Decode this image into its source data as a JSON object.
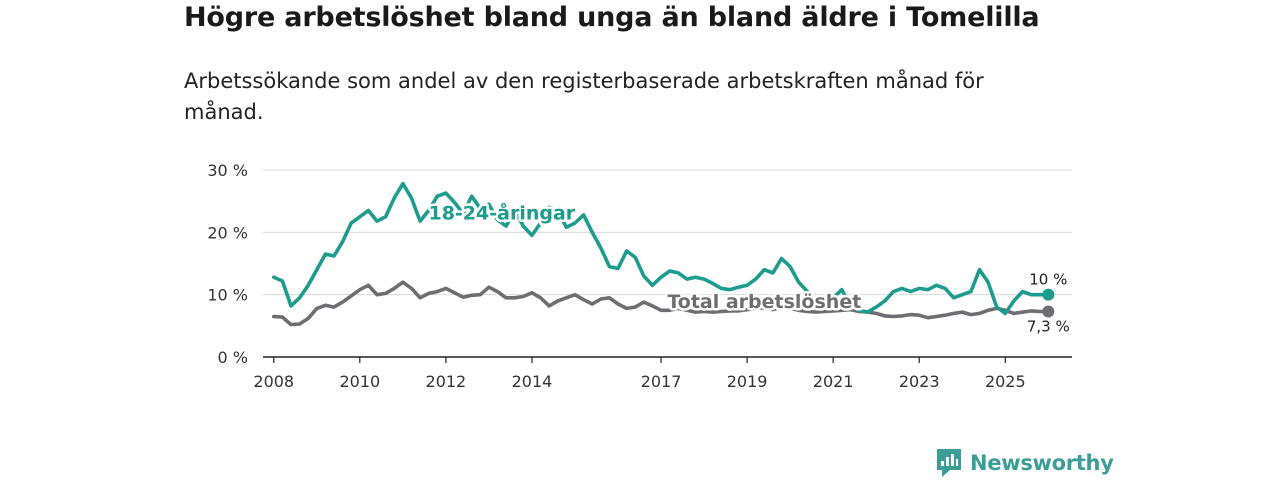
{
  "header": {
    "title": "Högre arbetslöshet bland unga än bland äldre i Tomelilla",
    "subtitle": "Arbetssökande som andel av den registerbaserade arbetskraften månad för månad."
  },
  "brand": {
    "name": "Newsworthy",
    "icon": "bar-chart-flag-icon",
    "color": "#3a9e96"
  },
  "chart_data": {
    "type": "line",
    "title": "Högre arbetslöshet bland unga än bland äldre i Tomelilla",
    "subtitle": "Arbetssökande som andel av den registerbaserade arbetskraften månad för månad.",
    "xlabel": "",
    "ylabel": "",
    "xlim": [
      2007.75,
      2026.55
    ],
    "ylim": [
      0,
      30
    ],
    "grid": true,
    "x_ticks": [
      {
        "value": 2008,
        "label": "2008"
      },
      {
        "value": 2010,
        "label": "2010"
      },
      {
        "value": 2012,
        "label": "2012"
      },
      {
        "value": 2014,
        "label": "2014"
      },
      {
        "value": 2017,
        "label": "2017"
      },
      {
        "value": 2019,
        "label": "2019"
      },
      {
        "value": 2021,
        "label": "2021"
      },
      {
        "value": 2023,
        "label": "2023"
      },
      {
        "value": 2025,
        "label": "2025"
      }
    ],
    "y_ticks": [
      {
        "value": 0,
        "label": "0 %"
      },
      {
        "value": 10,
        "label": "10 %"
      },
      {
        "value": 20,
        "label": "20 %"
      },
      {
        "value": 30,
        "label": "30 %"
      }
    ],
    "series": [
      {
        "name": "18-24-åringar",
        "color": "#1a9c8e",
        "end_label": "10 %",
        "x": [
          2008.0,
          2008.2,
          2008.4,
          2008.6,
          2008.8,
          2009.0,
          2009.2,
          2009.4,
          2009.6,
          2009.8,
          2010.0,
          2010.2,
          2010.4,
          2010.6,
          2010.8,
          2011.0,
          2011.2,
          2011.4,
          2011.6,
          2011.8,
          2012.0,
          2012.2,
          2012.4,
          2012.6,
          2012.8,
          2013.0,
          2013.2,
          2013.4,
          2013.6,
          2013.8,
          2014.0,
          2014.2,
          2014.4,
          2014.6,
          2014.8,
          2015.0,
          2015.2,
          2015.4,
          2015.6,
          2015.8,
          2016.0,
          2016.2,
          2016.4,
          2016.6,
          2016.8,
          2017.0,
          2017.2,
          2017.4,
          2017.6,
          2017.8,
          2018.0,
          2018.2,
          2018.4,
          2018.6,
          2018.8,
          2019.0,
          2019.2,
          2019.4,
          2019.6,
          2019.8,
          2020.0,
          2020.2,
          2020.4,
          2020.6,
          2020.8,
          2021.0,
          2021.2,
          2021.4,
          2021.6,
          2021.8,
          2022.0,
          2022.2,
          2022.4,
          2022.6,
          2022.8,
          2023.0,
          2023.2,
          2023.4,
          2023.6,
          2023.8,
          2024.0,
          2024.2,
          2024.4,
          2024.6,
          2024.8,
          2025.0,
          2025.2,
          2025.4,
          2025.6,
          2025.8,
          2026.0
        ],
        "values": [
          12.8,
          12.2,
          8.2,
          9.5,
          11.5,
          14.0,
          16.5,
          16.2,
          18.5,
          21.5,
          22.5,
          23.5,
          21.8,
          22.5,
          25.5,
          27.8,
          25.5,
          21.8,
          23.5,
          25.8,
          26.3,
          24.8,
          23.0,
          25.8,
          23.8,
          24.5,
          22.0,
          21.0,
          23.5,
          21.0,
          19.5,
          21.5,
          24.0,
          23.5,
          20.8,
          21.5,
          22.8,
          20.0,
          17.5,
          14.5,
          14.2,
          17.0,
          16.0,
          13.0,
          11.5,
          12.8,
          13.8,
          13.5,
          12.5,
          12.8,
          12.5,
          11.8,
          11.0,
          10.8,
          11.2,
          11.5,
          12.5,
          14.0,
          13.5,
          15.8,
          14.5,
          12.0,
          10.5,
          8.5,
          8.0,
          9.5,
          10.8,
          8.2,
          7.5,
          7.2,
          8.0,
          9.0,
          10.5,
          11.0,
          10.5,
          11.0,
          10.8,
          11.5,
          11.0,
          9.5,
          10.0,
          10.5,
          14.0,
          12.0,
          8.0,
          7.0,
          9.0,
          10.5,
          10.0,
          10.0,
          10.0
        ]
      },
      {
        "name": "Total arbetslöshet",
        "color": "#6e6d72",
        "end_label": "7,3 %",
        "x": [
          2008.0,
          2008.2,
          2008.4,
          2008.6,
          2008.8,
          2009.0,
          2009.2,
          2009.4,
          2009.6,
          2009.8,
          2010.0,
          2010.2,
          2010.4,
          2010.6,
          2010.8,
          2011.0,
          2011.2,
          2011.4,
          2011.6,
          2011.8,
          2012.0,
          2012.2,
          2012.4,
          2012.6,
          2012.8,
          2013.0,
          2013.2,
          2013.4,
          2013.6,
          2013.8,
          2014.0,
          2014.2,
          2014.4,
          2014.6,
          2014.8,
          2015.0,
          2015.2,
          2015.4,
          2015.6,
          2015.8,
          2016.0,
          2016.2,
          2016.4,
          2016.6,
          2016.8,
          2017.0,
          2017.2,
          2017.4,
          2017.6,
          2017.8,
          2018.0,
          2018.2,
          2018.4,
          2018.6,
          2018.8,
          2019.0,
          2019.2,
          2019.4,
          2019.6,
          2019.8,
          2020.0,
          2020.2,
          2020.4,
          2020.6,
          2020.8,
          2021.0,
          2021.2,
          2021.4,
          2021.6,
          2021.8,
          2022.0,
          2022.2,
          2022.4,
          2022.6,
          2022.8,
          2023.0,
          2023.2,
          2023.4,
          2023.6,
          2023.8,
          2024.0,
          2024.2,
          2024.4,
          2024.6,
          2024.8,
          2025.0,
          2025.2,
          2025.4,
          2025.6,
          2025.8,
          2026.0
        ],
        "values": [
          6.5,
          6.4,
          5.2,
          5.3,
          6.2,
          7.8,
          8.3,
          8.0,
          8.8,
          9.8,
          10.8,
          11.5,
          10.0,
          10.2,
          11.0,
          12.0,
          11.0,
          9.5,
          10.2,
          10.5,
          11.0,
          10.3,
          9.6,
          9.9,
          10.0,
          11.2,
          10.5,
          9.5,
          9.5,
          9.7,
          10.3,
          9.5,
          8.2,
          9.0,
          9.5,
          10.0,
          9.2,
          8.5,
          9.3,
          9.5,
          8.5,
          7.8,
          8.0,
          8.8,
          8.2,
          7.5,
          7.5,
          7.8,
          7.5,
          7.2,
          7.3,
          7.2,
          7.3,
          7.4,
          7.4,
          7.6,
          7.8,
          7.9,
          7.6,
          8.0,
          7.8,
          7.5,
          7.3,
          7.2,
          7.3,
          7.4,
          7.5,
          7.6,
          7.3,
          7.2,
          7.0,
          6.6,
          6.5,
          6.6,
          6.8,
          6.7,
          6.3,
          6.5,
          6.7,
          7.0,
          7.2,
          6.8,
          7.0,
          7.5,
          7.8,
          7.5,
          7.0,
          7.2,
          7.4,
          7.3,
          7.3
        ]
      }
    ],
    "annotations": [
      {
        "text": "18-24-åringar",
        "series": 0,
        "x": 2013.3,
        "y": 23.2
      },
      {
        "text": "Total arbetslöshet",
        "series": 1,
        "x": 2019.4,
        "y": 9.0
      }
    ]
  }
}
